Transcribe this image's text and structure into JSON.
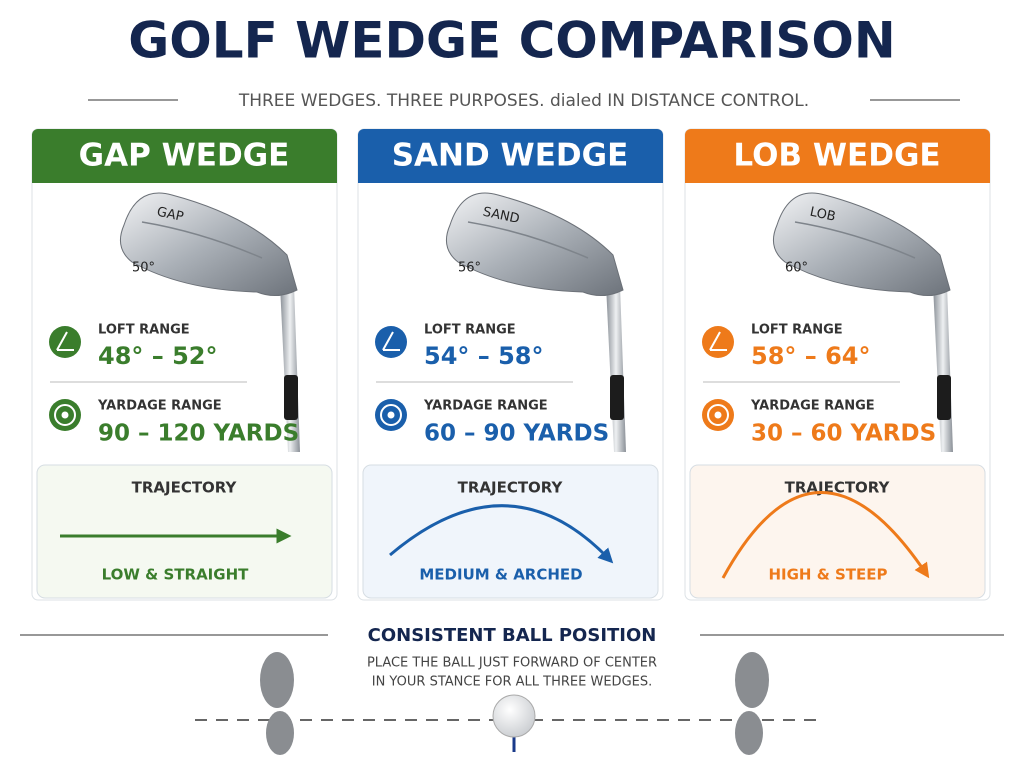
{
  "header": {
    "title": "GOLF WEDGE COMPARISON",
    "subtitle": "THREE WEDGES. THREE PURPOSES. dialed IN DISTANCE CONTROL."
  },
  "cards": [
    {
      "name": "GAP WEDGE",
      "club_stamp": "GAP",
      "loft_stamp": "50°",
      "loft_label": "LOFT RANGE",
      "loft": "48° – 52°",
      "yardage_label": "YARDAGE RANGE",
      "yardage": "90 – 120 YARDS",
      "trajectory_label": "TRAJECTORY",
      "trajectory": "LOW & STRAIGHT"
    },
    {
      "name": "SAND WEDGE",
      "club_stamp": "SAND",
      "loft_stamp": "56°",
      "loft_label": "LOFT RANGE",
      "loft": "54° – 58°",
      "yardage_label": "YARDAGE RANGE",
      "yardage": "60 – 90 YARDS",
      "trajectory_label": "TRAJECTORY",
      "trajectory": "MEDIUM & ARCHED"
    },
    {
      "name": "LOB WEDGE",
      "club_stamp": "LOB",
      "loft_stamp": "60°",
      "loft_label": "LOFT RANGE",
      "loft": "58° – 64°",
      "yardage_label": "YARDAGE RANGE",
      "yardage": "30 – 60 YARDS",
      "trajectory_label": "TRAJECTORY",
      "trajectory": "HIGH & STEEP"
    }
  ],
  "footer": {
    "heading": "CONSISTENT BALL POSITION",
    "lines": [
      "PLACE THE BALL JUST FORWARD OF CENTER",
      "IN YOUR STANCE FOR ALL THREE WEDGES."
    ]
  }
}
